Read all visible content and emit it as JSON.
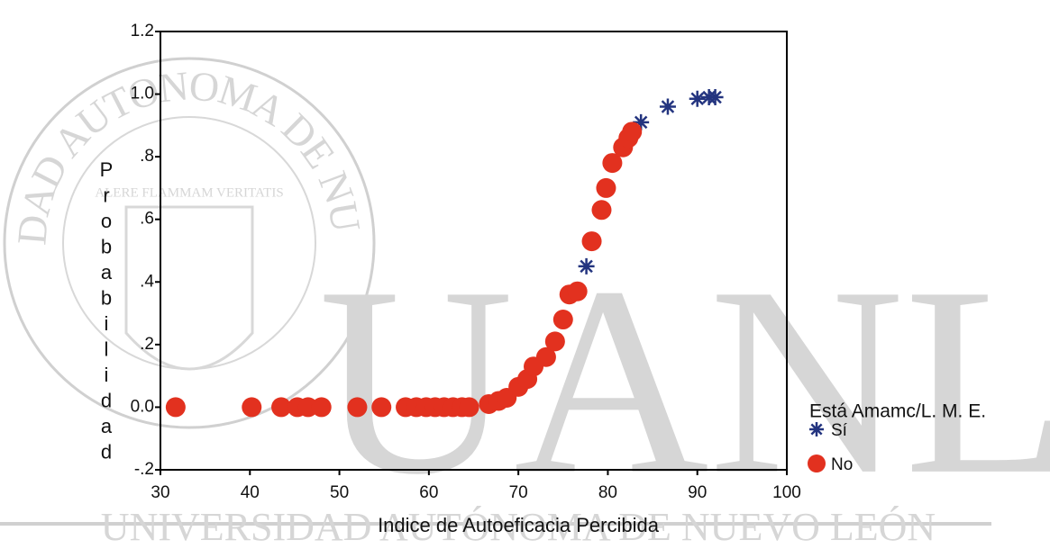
{
  "watermark": {
    "letters": "UANL",
    "university": "UNIVERSIDAD AUTÓNOMA DE NUEVO LEÓN",
    "seal": "UNIVERSIDAD AUTONOMA DE NUEVO LEON",
    "motto": "ALERE FLAMMAM VERITATIS"
  },
  "chart_data": {
    "type": "scatter",
    "xlabel": "Indice de Autoeficacia Percibida",
    "ylabel": "Probabilidad",
    "legend_title": "Está Amamc/L. M. E.",
    "legend": "lower right",
    "xlim": [
      30,
      100
    ],
    "xticks": [
      30,
      40,
      50,
      60,
      70,
      80,
      90,
      100
    ],
    "ylim": [
      -0.2,
      1.2
    ],
    "yticks": [
      {
        "value": -0.2,
        "label": "-.2"
      },
      {
        "value": 0,
        "label": "0.0"
      },
      {
        "value": 0.2,
        "label": ".2"
      },
      {
        "value": 0.4,
        "label": ".4"
      },
      {
        "value": 0.6,
        "label": ".6"
      },
      {
        "value": 0.8,
        "label": ".8"
      },
      {
        "value": 1,
        "label": "1.0"
      },
      1.2
    ],
    "series": [
      {
        "name": "Sí",
        "color": "#23347f",
        "marker": "asterisk",
        "x": [
          77.6,
          83.7,
          86.7,
          90.0,
          91.3,
          92.0
        ],
        "values": [
          0.45,
          0.91,
          0.96,
          0.985,
          0.99,
          0.99
        ]
      },
      {
        "name": "No",
        "color": "#e2311f",
        "marker": "circle",
        "x": [
          31.7,
          40.2,
          43.5,
          45.3,
          46.5,
          48.0,
          52.0,
          54.7,
          57.4,
          58.6,
          59.7,
          60.7,
          61.7,
          62.7,
          63.7,
          64.5,
          66.7,
          67.8,
          68.7,
          70.0,
          71.0,
          71.7,
          73.1,
          74.1,
          75.0,
          75.7,
          76.6,
          78.2,
          79.3,
          79.8,
          80.5,
          81.7,
          82.3,
          82.7
        ],
        "values": [
          0,
          0,
          0,
          0,
          0,
          0,
          0,
          0,
          0,
          0,
          0,
          0,
          0,
          0,
          0,
          0,
          0.01,
          0.02,
          0.03,
          0.065,
          0.09,
          0.13,
          0.16,
          0.21,
          0.28,
          0.36,
          0.37,
          0.53,
          0.63,
          0.7,
          0.78,
          0.83,
          0.86,
          0.88
        ]
      }
    ]
  }
}
